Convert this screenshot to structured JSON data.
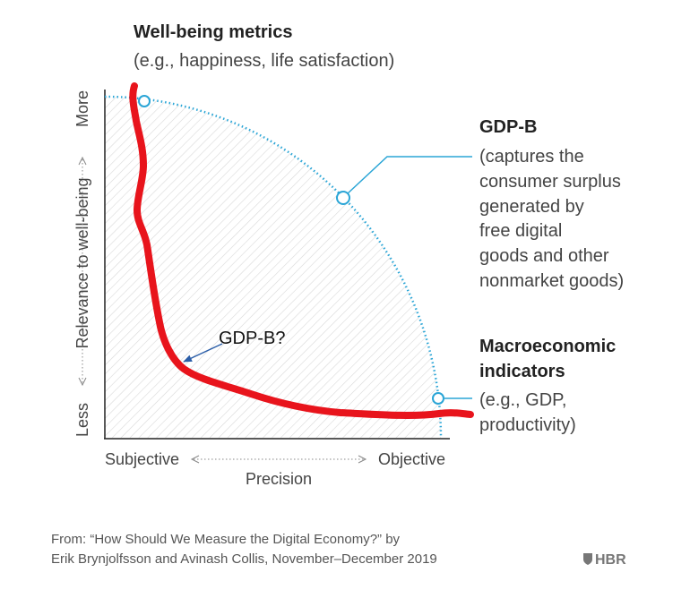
{
  "top_label": {
    "title": "Well-being metrics",
    "subtitle": "(e.g., happiness, life satisfaction)"
  },
  "gdpb_label": {
    "title": "GDP-B",
    "lines": [
      "(captures the",
      "consumer surplus",
      "generated by",
      "free digital",
      "goods and other",
      "nonmarket goods)"
    ]
  },
  "macro_label": {
    "title_lines": [
      "Macroeconomic",
      "indicators"
    ],
    "lines": [
      "(e.g., GDP,",
      "productivity)"
    ]
  },
  "y_axis": {
    "title": "Relevance to well-being",
    "low": "Less",
    "high": "More"
  },
  "x_axis": {
    "title": "Precision",
    "low": "Subjective",
    "high": "Objective"
  },
  "annotation": {
    "text": "GDP-B?",
    "curve_color": "#e8141c",
    "arrow_color": "#2b5ea8"
  },
  "colors": {
    "frontier": "#2aa5d6",
    "hatch": "#d8d8d8"
  },
  "footer": {
    "line1": "From: “How Should We Measure the Digital Economy?” by",
    "line2": "Erik Brynjolfsson and Avinash Collis, November–December 2019",
    "logo": "HBR"
  }
}
